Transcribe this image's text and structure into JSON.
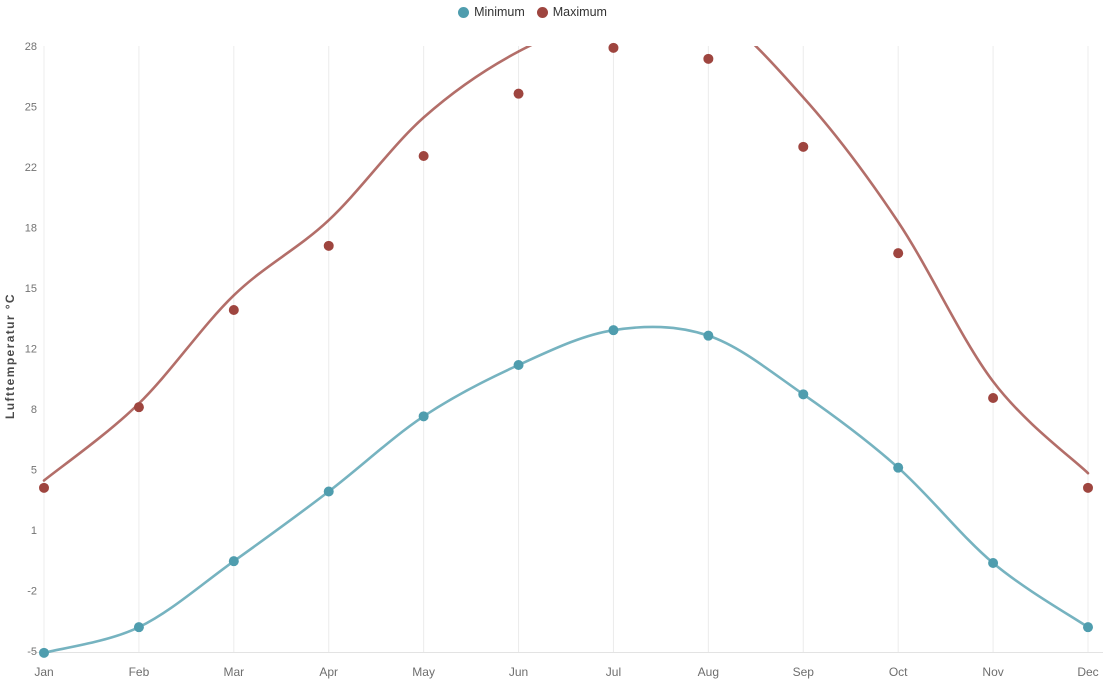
{
  "chart_data": {
    "type": "line",
    "title": "",
    "ylabel": "Lufttemperatur °C",
    "categories": [
      "Jan",
      "Feb",
      "Mar",
      "Apr",
      "May",
      "Jun",
      "Jul",
      "Aug",
      "Sep",
      "Oct",
      "Nov",
      "Dec"
    ],
    "y_range": [
      -5,
      28
    ],
    "y_tick_labels": [
      "-5",
      "-2",
      "1",
      "5",
      "8",
      "12",
      "15",
      "18",
      "22",
      "25",
      "28"
    ],
    "grid": "vertical-gridlines-only",
    "legend_position": "top-center",
    "clip_above": 28,
    "series": [
      {
        "name": "Minimum",
        "color": "#4f9dae",
        "line_values": [
          -5.1,
          -3.7,
          -0.1,
          3.7,
          7.8,
          10.6,
          12.5,
          12.2,
          9.0,
          5.0,
          -0.2,
          -3.7
        ],
        "marker_values": [
          -5.1,
          -3.7,
          -0.1,
          3.7,
          7.8,
          10.6,
          12.5,
          12.2,
          9.0,
          5.0,
          -0.2,
          -3.7
        ]
      },
      {
        "name": "Maximum",
        "color": "#9e453f",
        "line_values": [
          4.3,
          8.5,
          14.4,
          18.5,
          24.1,
          27.7,
          29.6,
          29.9,
          25.2,
          18.4,
          9.7,
          4.7
        ],
        "marker_values": [
          3.9,
          8.3,
          13.6,
          17.1,
          22.0,
          25.4,
          27.9,
          27.3,
          22.5,
          16.7,
          8.8,
          3.9
        ],
        "note": "line is clipped at y-axis max 28 between Jun and Aug; Jul/Aug line values estimated"
      }
    ],
    "style": {
      "gridline_color": "#ececec",
      "axis_line_color": "#e3e3e3",
      "tick_label_color": "#737373",
      "month_label_color": "#6e6e6e",
      "line_opacity": 0.78,
      "marker_radius": 5,
      "line_width": 2.6
    }
  }
}
